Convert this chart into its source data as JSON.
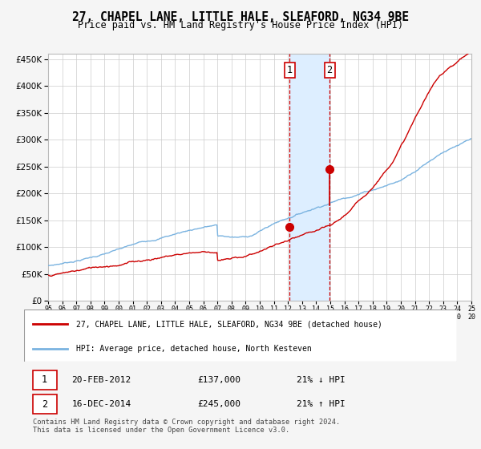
{
  "title": "27, CHAPEL LANE, LITTLE HALE, SLEAFORD, NG34 9BE",
  "subtitle": "Price paid vs. HM Land Registry's House Price Index (HPI)",
  "legend_line1": "27, CHAPEL LANE, LITTLE HALE, SLEAFORD, NG34 9BE (detached house)",
  "legend_line2": "HPI: Average price, detached house, North Kesteven",
  "sale1_date": "20-FEB-2012",
  "sale1_price": 137000,
  "sale1_hpi": "21% ↓ HPI",
  "sale2_date": "16-DEC-2014",
  "sale2_price": 245000,
  "sale2_hpi": "21% ↑ HPI",
  "footnote": "Contains HM Land Registry data © Crown copyright and database right 2024.\nThis data is licensed under the Open Government Licence v3.0.",
  "hpi_color": "#7ab3e0",
  "price_color": "#cc0000",
  "marker_color": "#cc0000",
  "vline_color": "#cc0000",
  "shade_color": "#ddeeff",
  "background_color": "#f5f5f5",
  "plot_bg_color": "#ffffff",
  "ylim": [
    0,
    460000
  ],
  "yticks": [
    0,
    50000,
    100000,
    150000,
    200000,
    250000,
    300000,
    350000,
    400000,
    450000
  ],
  "sale1_year": 2012.12,
  "sale2_year": 2014.95,
  "xmin": 1995,
  "xmax": 2025
}
